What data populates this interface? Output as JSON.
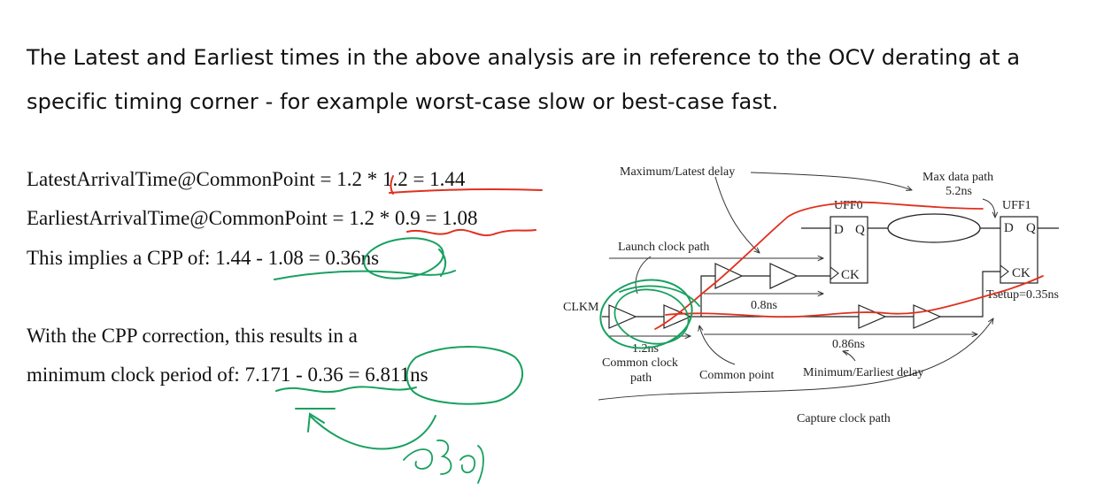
{
  "intro": {
    "line1": "The Latest and Earliest times in the above analysis are in reference to the   OCV derating at a",
    "line2": "specific timing corner - for example worst-case slow or best-case fast."
  },
  "equations": {
    "latest_label": "LatestArrivalTime@CommonPoint = ",
    "latest_value": "1.2 * 1.2 = 1.44",
    "earliest_label": "EarliestArrivalTime@CommonPoint = ",
    "earliest_value": "1.2 * 0.9 = 1.08",
    "cpp_label": "This implies a CPP of: 1.44 - 1.08 = ",
    "cpp_value": "0.36ns",
    "correction_line1": "With the CPP correction, this results in a",
    "correction_label": "minimum clock period of: 7.171 - 0.36 = ",
    "correction_value": "6.811ns"
  },
  "diagram": {
    "max_latest_delay": "Maximum/Latest delay",
    "max_data_path": "Max data path",
    "max_data_path_value": "5.2ns",
    "uff0": "UFF0",
    "uff1": "UFF1",
    "pin_d": "D",
    "pin_q": "Q",
    "pin_ck": "CK",
    "launch_clock_path": "Launch clock path",
    "clkm": "CLKM",
    "delay_08": "0.8ns",
    "delay_12": "1.2ns",
    "delay_086": "0.86ns",
    "tsetup": "Tsetup=0.35ns",
    "common_clock_path_1": "Common clock",
    "common_clock_path_2": "path",
    "common_point": "Common point",
    "min_earliest_delay": "Minimum/Earliest delay",
    "capture_clock_path": "Capture clock path"
  },
  "colors": {
    "red_ink": "#e0301e",
    "green_ink": "#18a060"
  }
}
